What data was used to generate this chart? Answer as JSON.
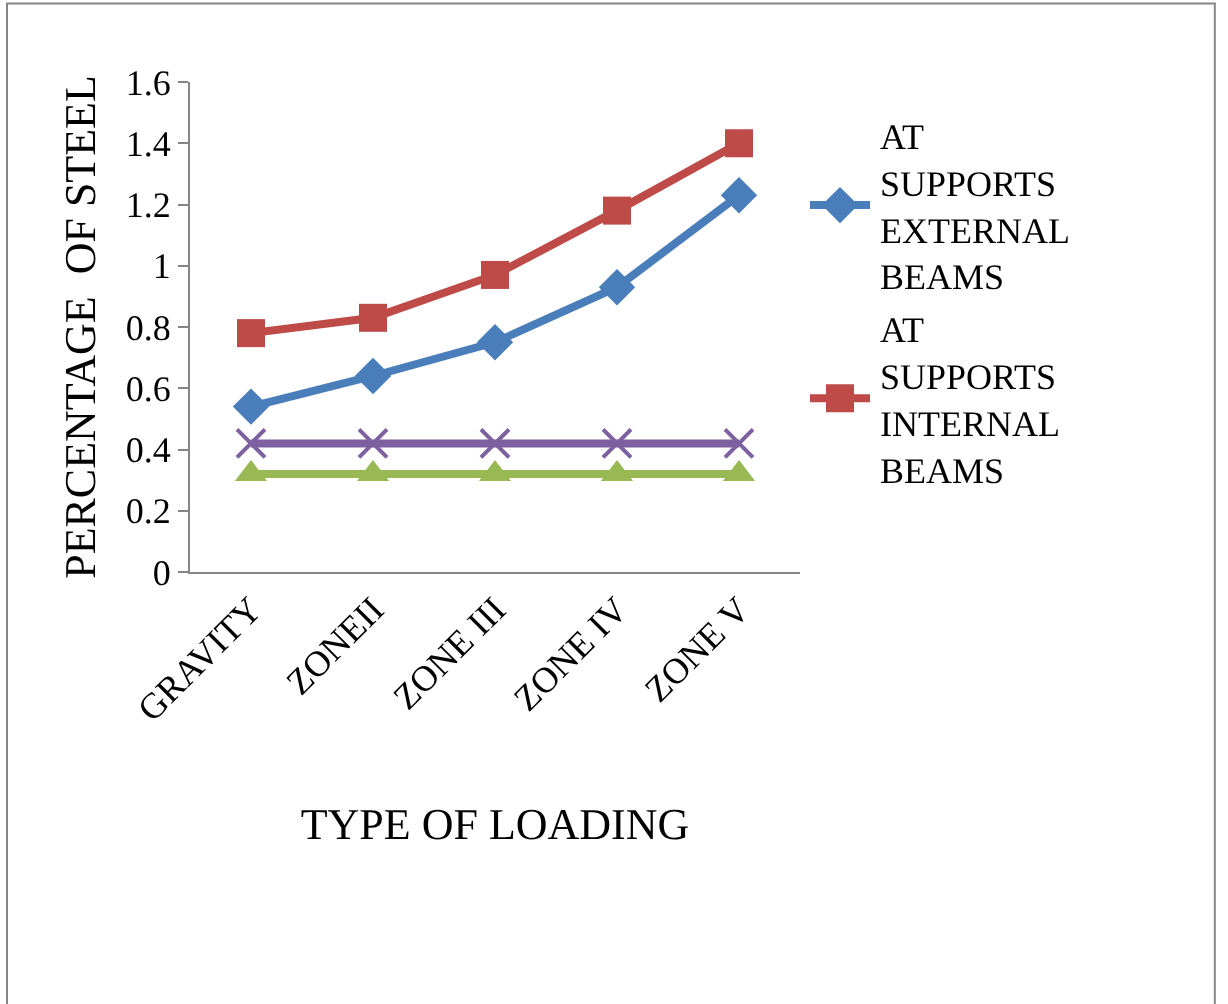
{
  "chart_data": {
    "type": "line",
    "xlabel": "TYPE OF LOADING",
    "ylabel": "PERCENTAGE  OF STEEL",
    "categories": [
      "GRAVITY",
      "ZONEII",
      "ZONE III",
      "ZONE IV",
      "ZONE V"
    ],
    "series": [
      {
        "name": "AT SUPPORTS EXTERNAL BEAMS",
        "color": "#4a7ebb",
        "marker": "diamond",
        "values": [
          0.54,
          0.64,
          0.75,
          0.93,
          1.23
        ]
      },
      {
        "name": "AT SUPPORTS INTERNAL BEAMS",
        "color": "#be4b48",
        "marker": "square",
        "values": [
          0.78,
          0.83,
          0.97,
          1.18,
          1.4
        ]
      },
      {
        "color": "#7d60a0",
        "marker": "cross",
        "values": [
          0.42,
          0.42,
          0.42,
          0.42,
          0.42
        ]
      },
      {
        "color": "#98b954",
        "marker": "triangle",
        "values": [
          0.32,
          0.32,
          0.32,
          0.32,
          0.32
        ]
      }
    ],
    "ylim": [
      0,
      1.6
    ],
    "yticks": [
      0,
      0.2,
      0.4,
      0.6,
      0.8,
      1,
      1.2,
      1.4,
      1.6
    ],
    "legend": "right"
  }
}
